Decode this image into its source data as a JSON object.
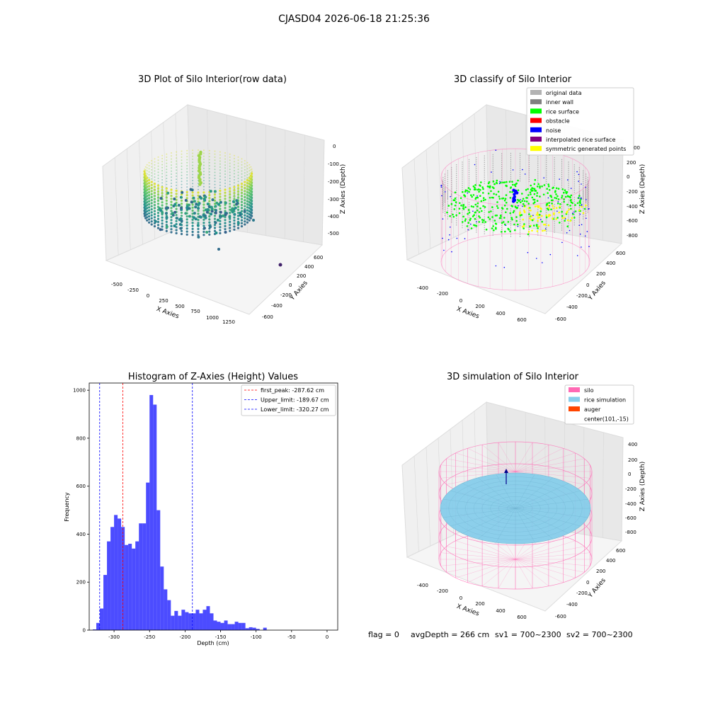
{
  "suptitle": "CJASD04 2026-06-18 21:25:36",
  "footer": {
    "flag": "flag = 0",
    "avg": "avgDepth = 266 cm",
    "sv1": "sv1 = 700~2300",
    "sv2": "sv2 = 700~2300"
  },
  "colors": {
    "hist": "#0000ff",
    "first_peak": "#ff0000",
    "limits": "#0000ff",
    "silo": "#ff69b4",
    "rice": "#87ceeb",
    "auger": "#ff4500",
    "wall": "#808080",
    "surface": "#00ff00",
    "noise": "#0000ff",
    "sym": "#ffff00"
  },
  "chart_data": [
    {
      "type": "scatter3d",
      "title": "3D Plot of Silo Interior(row data)",
      "xlabel": "X Axies",
      "ylabel": "Y Axies",
      "zlabel": "Z Axies (Depth)",
      "x_ticks": [
        "-500",
        "-250",
        "0",
        "250",
        "500",
        "750",
        "1000",
        "1250"
      ],
      "y_ticks": [
        "-600",
        "-400",
        "-200",
        "0",
        "200",
        "400",
        "600"
      ],
      "z_ticks": [
        "0",
        "-100",
        "-200",
        "-300",
        "-400",
        "-500"
      ],
      "colormap": "viridis",
      "grid": true
    },
    {
      "type": "scatter3d",
      "title": "3D classify of Silo Interior",
      "xlabel": "X Axies",
      "ylabel": "Y Axies",
      "zlabel": "Z Axies (Depth)",
      "x_ticks": [
        "-400",
        "-200",
        "0",
        "200",
        "400",
        "600"
      ],
      "y_ticks": [
        "-600",
        "-400",
        "-200",
        "0",
        "200",
        "400",
        "600"
      ],
      "z_ticks": [
        "200",
        "0",
        "-200",
        "-400",
        "-600",
        "-800"
      ],
      "z_ticks_partial_top": "00",
      "legend": [
        {
          "label": "original data",
          "color": "#b3b3b3"
        },
        {
          "label": "inner wall",
          "color": "#808080"
        },
        {
          "label": "rice surface",
          "color": "#00ff00"
        },
        {
          "label": "obstacle",
          "color": "#ff0000"
        },
        {
          "label": "noise",
          "color": "#0000ff"
        },
        {
          "label": "interpolated rice surface",
          "color": "#800080"
        },
        {
          "label": "symmetric generated points",
          "color": "#ffff00"
        }
      ],
      "grid": true
    },
    {
      "type": "bar",
      "title": "Histogram of Z-Axies (Height) Values",
      "xlabel": "Depth (cm)",
      "ylabel": "Frequency",
      "xlim": [
        -335,
        15
      ],
      "ylim": [
        0,
        1030
      ],
      "x_ticks": [
        -300,
        -250,
        -200,
        -150,
        -100,
        -50,
        0
      ],
      "y_ticks": [
        0,
        200,
        400,
        600,
        800,
        1000
      ],
      "bin_start": -330,
      "bin_width": 5,
      "values": [
        3,
        30,
        90,
        230,
        370,
        430,
        480,
        465,
        430,
        355,
        360,
        340,
        370,
        445,
        445,
        615,
        980,
        940,
        500,
        265,
        170,
        125,
        60,
        80,
        60,
        85,
        75,
        70,
        70,
        85,
        70,
        85,
        100,
        70,
        40,
        35,
        30,
        40,
        25,
        25,
        35,
        30,
        30,
        8,
        12,
        10,
        5,
        0,
        10,
        0,
        0
      ],
      "vlines": [
        {
          "label": "first_peak: -287.62 cm",
          "x": -287.62,
          "color": "#ff0000"
        },
        {
          "label": "Upper_limit: -189.67 cm",
          "x": -189.67,
          "color": "#0000ff"
        },
        {
          "label": "Lower_limit: -320.27 cm",
          "x": -320.27,
          "color": "#0000ff"
        }
      ],
      "legend": "upper right",
      "grid": false
    },
    {
      "type": "surface3d",
      "title": "3D simulation of Silo Interior",
      "xlabel": "X Axies",
      "ylabel": "Y Axies",
      "zlabel": "Z Axies (Depth)",
      "x_ticks": [
        "-400",
        "-200",
        "0",
        "200",
        "400",
        "600"
      ],
      "y_ticks": [
        "-600",
        "-400",
        "-200",
        "0",
        "200",
        "400",
        "600"
      ],
      "z_ticks": [
        "400",
        "200",
        "0",
        "-200",
        "-400",
        "-600",
        "-800"
      ],
      "legend": [
        {
          "label": "silo",
          "color": "#ff69b4"
        },
        {
          "label": "rice simulation",
          "color": "#87ceeb"
        },
        {
          "label": "auger",
          "color": "#ff4500"
        },
        {
          "label": "center(101,-15)",
          "color": ""
        }
      ],
      "grid": true
    }
  ]
}
